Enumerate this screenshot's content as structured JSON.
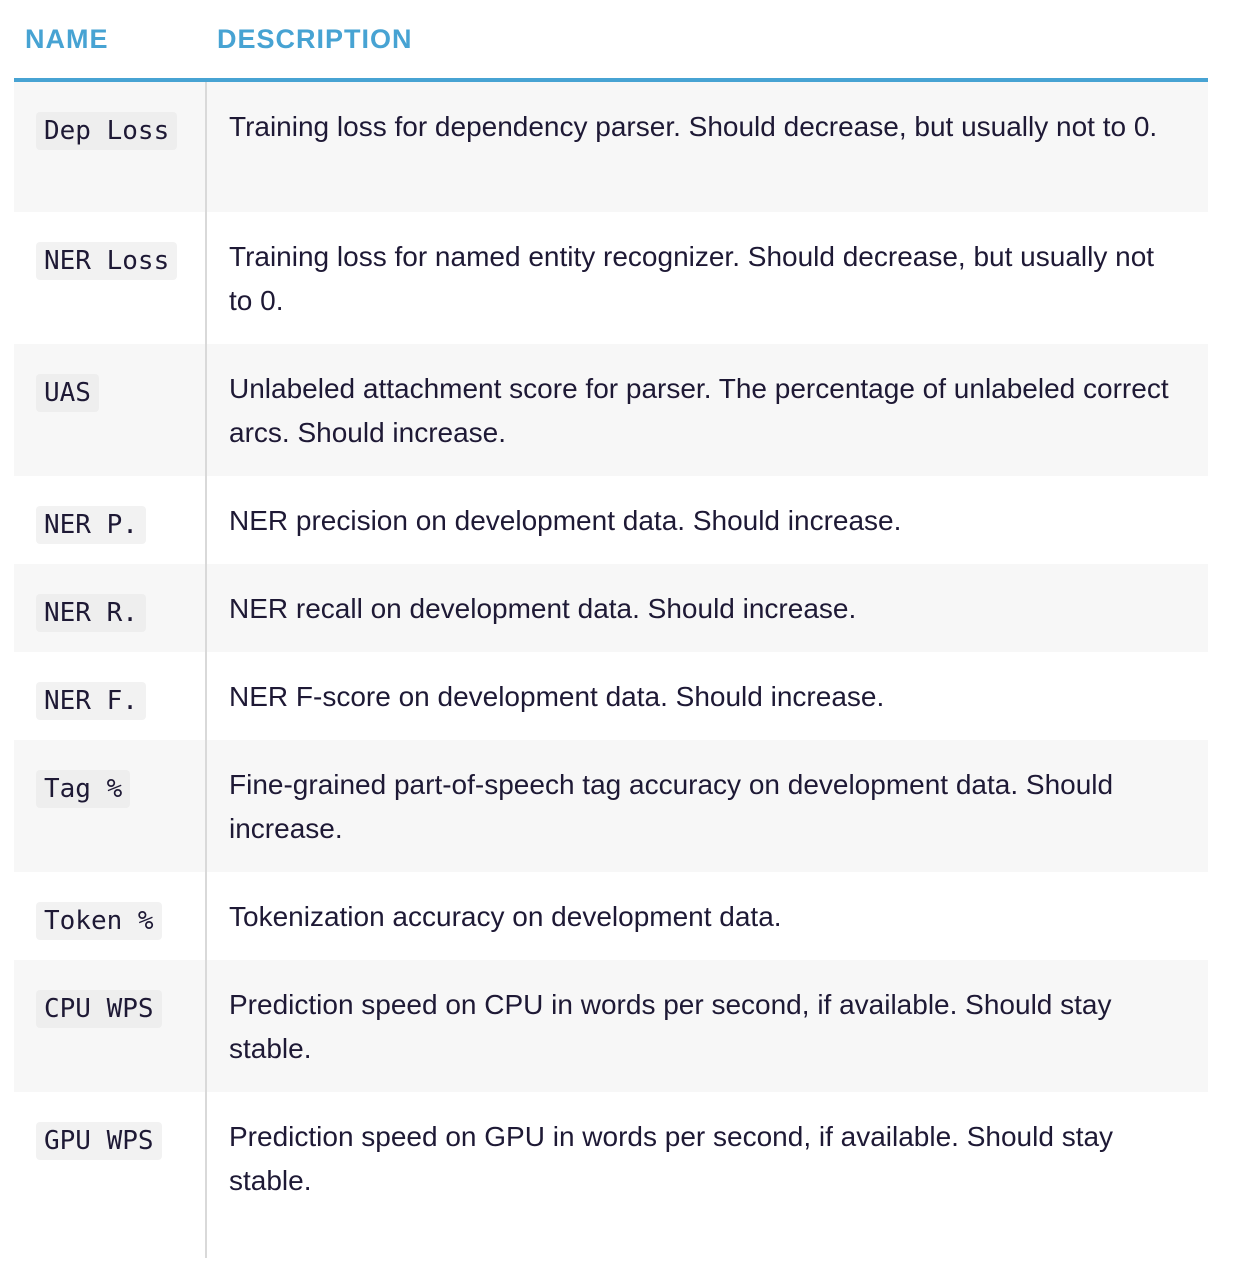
{
  "table": {
    "headers": {
      "name": "NAME",
      "description": "DESCRIPTION"
    },
    "rows": [
      {
        "name": "Dep Loss",
        "description": "Training loss for dependency parser. Should decrease, but usually not to 0."
      },
      {
        "name": "NER Loss",
        "description": "Training loss for named entity recognizer. Should decrease, but usually not to 0."
      },
      {
        "name": "UAS",
        "description": "Unlabeled attachment score for parser. The percentage of unlabeled correct arcs. Should increase."
      },
      {
        "name": "NER P.",
        "description": "NER precision on development data. Should increase."
      },
      {
        "name": "NER R.",
        "description": "NER recall on development data. Should increase."
      },
      {
        "name": "NER F.",
        "description": "NER F-score on development data. Should increase."
      },
      {
        "name": "Tag %",
        "description": "Fine-grained part-of-speech tag accuracy on development data. Should increase."
      },
      {
        "name": "Token %",
        "description": "Tokenization accuracy on development data."
      },
      {
        "name": "CPU WPS",
        "description": "Prediction speed on CPU in words per second, if available. Should stay stable."
      },
      {
        "name": "GPU WPS",
        "description": "Prediction speed on GPU in words per second, if available. Should stay stable."
      }
    ]
  },
  "colors": {
    "header_text": "#47a3d3",
    "header_rule": "#47a3d3",
    "row_stripe": "#f7f7f7",
    "body_text": "#1e1935",
    "code_background": "#eeeeee"
  }
}
